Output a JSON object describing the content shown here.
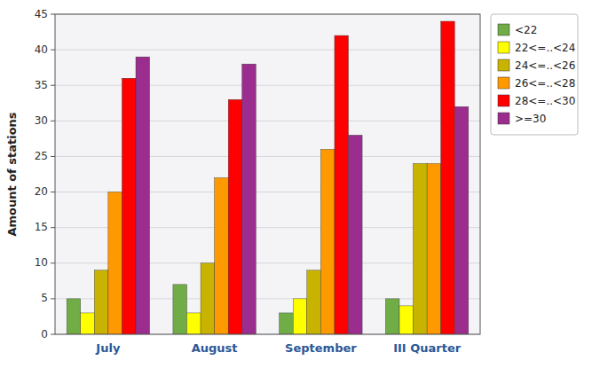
{
  "chart_data": {
    "type": "bar",
    "categories": [
      "July",
      "August",
      "September",
      "III Quarter"
    ],
    "series": [
      {
        "name": "<22",
        "color": "#70ad47",
        "values": [
          5,
          7,
          3,
          5
        ]
      },
      {
        "name": "22<=..<24",
        "color": "#ffff00",
        "values": [
          3,
          3,
          5,
          4
        ]
      },
      {
        "name": "24<=..<26",
        "color": "#c8b400",
        "values": [
          9,
          10,
          9,
          24
        ]
      },
      {
        "name": "26<=..<28",
        "color": "#ff9900",
        "values": [
          20,
          22,
          26,
          24
        ]
      },
      {
        "name": "28<=..<30",
        "color": "#ff0000",
        "values": [
          36,
          33,
          42,
          44
        ]
      },
      {
        "name": ">=30",
        "color": "#9b2d8e",
        "values": [
          39,
          38,
          28,
          32
        ]
      }
    ],
    "ylabel": "Amount of stations",
    "ylim": [
      0,
      45
    ],
    "yticks": [
      0,
      5,
      10,
      15,
      20,
      25,
      30,
      35,
      40,
      45
    ],
    "grid": true,
    "legend": "upper right"
  }
}
